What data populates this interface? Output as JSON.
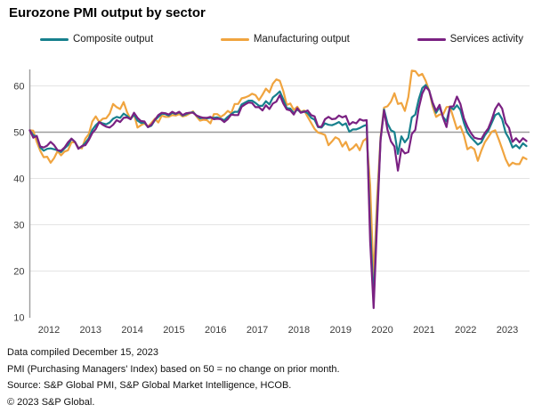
{
  "title": "Eurozone PMI output by sector",
  "legend": [
    {
      "label": "Composite output",
      "color": "#17808d"
    },
    {
      "label": "Manufacturing output",
      "color": "#f0a43f"
    },
    {
      "label": "Services activity",
      "color": "#7a2182"
    }
  ],
  "footer": {
    "line1": "Data compiled December 15, 2023",
    "line2": "PMI (Purchasing Managers' Index) based on 50 = no change on prior month.",
    "line3": "Source: S&P Global PMI, S&P Global Market Intelligence, HCOB.",
    "line4": "© 2023 S&P Global."
  },
  "chart_data": {
    "type": "line",
    "title": "Eurozone PMI output by sector",
    "x_start": "2012-01",
    "x_end": "2023-12",
    "x_interval": "monthly",
    "x_tick_labels": [
      "2012",
      "2013",
      "2014",
      "2015",
      "2016",
      "2017",
      "2018",
      "2019",
      "2020",
      "2021",
      "2022",
      "2023"
    ],
    "y_ticks": [
      10,
      20,
      30,
      40,
      50,
      60
    ],
    "ylim": [
      10,
      63.5
    ],
    "baseline": 50,
    "grid": "horizontal",
    "legend_position": "top",
    "series": [
      {
        "name": "Composite output",
        "color": "#17808d",
        "z": 2,
        "values": [
          50.4,
          49.3,
          49.1,
          46.7,
          46.0,
          46.4,
          46.5,
          46.3,
          46.1,
          45.7,
          46.5,
          47.2,
          48.6,
          47.9,
          46.5,
          46.9,
          47.7,
          48.7,
          50.5,
          51.5,
          52.2,
          51.9,
          51.7,
          52.1,
          52.9,
          53.3,
          53.1,
          54.0,
          53.5,
          52.8,
          53.8,
          52.5,
          52.0,
          52.1,
          51.1,
          51.4,
          52.6,
          53.3,
          54.0,
          53.9,
          53.6,
          54.2,
          53.9,
          54.3,
          53.6,
          53.9,
          54.2,
          54.3,
          53.6,
          53.0,
          53.1,
          53.0,
          53.1,
          53.1,
          53.2,
          52.9,
          52.6,
          53.3,
          53.9,
          54.4,
          54.4,
          56.0,
          56.4,
          56.8,
          56.8,
          56.3,
          55.7,
          55.7,
          56.7,
          56.0,
          57.5,
          58.1,
          58.8,
          57.1,
          55.2,
          55.1,
          54.1,
          54.9,
          54.3,
          54.5,
          54.1,
          53.1,
          52.7,
          51.1,
          51.0,
          51.9,
          51.6,
          51.5,
          51.8,
          52.2,
          51.5,
          51.9,
          50.1,
          50.6,
          50.6,
          50.9,
          51.3,
          51.6,
          29.7,
          13.6,
          31.9,
          48.5,
          54.9,
          51.9,
          50.4,
          50.0,
          45.3,
          49.1,
          47.8,
          48.8,
          53.2,
          53.8,
          57.1,
          59.5,
          60.2,
          59.0,
          56.2,
          54.2,
          55.4,
          53.3,
          52.3,
          55.5,
          54.9,
          55.8,
          54.8,
          52.0,
          49.9,
          48.9,
          48.1,
          47.3,
          47.8,
          49.3,
          50.3,
          52.0,
          53.7,
          54.1,
          52.8,
          49.9,
          48.6,
          46.7,
          47.2,
          46.5,
          47.6,
          47.0
        ]
      },
      {
        "name": "Manufacturing output",
        "color": "#f0a43f",
        "z": 1,
        "values": [
          50.4,
          50.3,
          47.9,
          46.0,
          44.6,
          44.7,
          43.4,
          44.4,
          45.9,
          45.0,
          45.8,
          46.1,
          47.8,
          47.8,
          46.7,
          46.5,
          48.6,
          49.6,
          52.3,
          53.4,
          52.2,
          52.9,
          53.0,
          54.0,
          56.1,
          55.4,
          55.0,
          56.5,
          54.3,
          52.8,
          53.9,
          51.0,
          51.5,
          51.9,
          51.2,
          52.0,
          52.9,
          52.1,
          53.6,
          53.3,
          53.3,
          53.7,
          53.6,
          53.9,
          53.4,
          53.6,
          54.0,
          54.5,
          53.4,
          52.5,
          52.7,
          52.6,
          51.9,
          53.9,
          53.9,
          53.3,
          53.8,
          54.6,
          54.1,
          56.1,
          56.1,
          57.3,
          57.5,
          57.8,
          58.3,
          58.0,
          56.9,
          58.1,
          59.4,
          58.6,
          60.5,
          61.4,
          61.1,
          58.9,
          55.9,
          56.2,
          54.8,
          55.5,
          54.4,
          54.7,
          53.3,
          52.0,
          50.7,
          49.9,
          49.7,
          49.4,
          47.2,
          48.0,
          48.9,
          48.5,
          46.9,
          47.9,
          46.1,
          46.6,
          47.4,
          46.1,
          48.1,
          48.7,
          38.5,
          18.1,
          35.6,
          48.9,
          55.3,
          55.6,
          56.6,
          58.4,
          56.1,
          56.3,
          54.6,
          57.6,
          63.3,
          63.2,
          62.2,
          62.6,
          61.1,
          59.0,
          55.6,
          53.3,
          53.8,
          53.8,
          55.4,
          55.5,
          53.1,
          50.7,
          51.3,
          49.3,
          46.3,
          46.8,
          46.3,
          43.8,
          46.0,
          47.8,
          48.9,
          50.1,
          50.4,
          48.5,
          46.4,
          44.2,
          42.7,
          43.4,
          43.1,
          43.1,
          44.6,
          44.2
        ]
      },
      {
        "name": "Services activity",
        "color": "#7a2182",
        "z": 3,
        "values": [
          50.4,
          48.8,
          49.2,
          46.9,
          46.7,
          47.1,
          47.9,
          47.2,
          46.1,
          46.0,
          46.7,
          47.8,
          48.6,
          47.9,
          46.4,
          47.0,
          47.2,
          48.3,
          49.8,
          50.7,
          52.2,
          51.6,
          51.2,
          51.0,
          51.6,
          52.6,
          52.2,
          53.1,
          53.2,
          52.8,
          54.2,
          53.1,
          52.4,
          52.3,
          51.1,
          51.6,
          52.7,
          53.7,
          54.2,
          54.1,
          53.8,
          54.4,
          54.0,
          54.4,
          53.7,
          54.1,
          54.2,
          54.2,
          53.6,
          53.3,
          53.1,
          53.1,
          53.3,
          52.8,
          52.9,
          52.8,
          52.2,
          52.8,
          53.8,
          53.7,
          53.7,
          55.5,
          56.0,
          56.4,
          56.3,
          55.4,
          55.4,
          54.7,
          55.8,
          55.0,
          56.2,
          56.6,
          58.0,
          56.2,
          54.9,
          54.7,
          53.8,
          55.2,
          54.2,
          54.4,
          54.7,
          53.7,
          53.4,
          51.2,
          51.2,
          52.8,
          53.3,
          52.8,
          52.9,
          53.6,
          53.2,
          53.5,
          51.6,
          52.2,
          51.9,
          52.8,
          52.5,
          52.6,
          26.4,
          12.0,
          30.5,
          48.3,
          54.7,
          50.5,
          48.0,
          46.9,
          41.7,
          46.4,
          45.4,
          45.7,
          49.6,
          50.5,
          55.2,
          58.3,
          59.8,
          59.0,
          56.4,
          54.6,
          55.9,
          53.1,
          51.1,
          55.5,
          55.6,
          57.7,
          56.1,
          53.0,
          51.2,
          49.8,
          48.8,
          48.6,
          48.5,
          49.8,
          50.8,
          52.7,
          55.0,
          56.2,
          55.1,
          52.0,
          50.9,
          47.9,
          48.7,
          47.8,
          48.7,
          48.1
        ]
      }
    ]
  }
}
